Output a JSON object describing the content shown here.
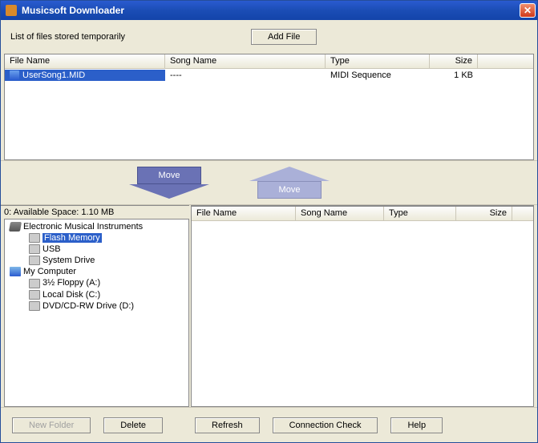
{
  "window": {
    "title": "Musicsoft Downloader"
  },
  "upper": {
    "label": "List of files stored temporarily",
    "add_button": "Add File",
    "columns": {
      "file_name": "File Name",
      "song_name": "Song Name",
      "type": "Type",
      "size": "Size"
    },
    "rows": [
      {
        "file_name": "UserSong1.MID",
        "song_name": "----",
        "type": "MIDI Sequence",
        "size": "1 KB",
        "selected": true
      }
    ]
  },
  "arrows": {
    "down_label": "Move",
    "up_label": "Move"
  },
  "lower": {
    "space_label": "0:  Available Space: 1.10 MB",
    "tree": [
      {
        "depth": 1,
        "icon": "device",
        "label": "Electronic Musical Instruments"
      },
      {
        "depth": 2,
        "icon": "drive",
        "label": "Flash Memory",
        "selected": true
      },
      {
        "depth": 2,
        "icon": "drive",
        "label": "USB"
      },
      {
        "depth": 2,
        "icon": "drive",
        "label": "System Drive"
      },
      {
        "depth": 1,
        "icon": "computer",
        "label": "My Computer"
      },
      {
        "depth": 2,
        "icon": "drive",
        "label": "3½ Floppy (A:)"
      },
      {
        "depth": 2,
        "icon": "drive",
        "label": "Local Disk (C:)"
      },
      {
        "depth": 2,
        "icon": "drive",
        "label": "DVD/CD-RW Drive (D:)"
      }
    ],
    "columns": {
      "file_name": "File Name",
      "song_name": "Song Name",
      "type": "Type",
      "size": "Size"
    }
  },
  "buttons": {
    "new_folder": "New Folder",
    "delete": "Delete",
    "refresh": "Refresh",
    "connection_check": "Connection Check",
    "help": "Help"
  },
  "colors": {
    "titlebar_grad_top": "#2a5bd0",
    "titlebar_grad_bottom": "#1344aa",
    "panel_bg": "#ece9d8",
    "selection_bg": "#2b5fc9",
    "arrow_down_fill": "#6a72b5",
    "arrow_up_fill": "#aab0d8",
    "close_btn_top": "#f08f6e",
    "close_btn_bottom": "#d0391a"
  }
}
